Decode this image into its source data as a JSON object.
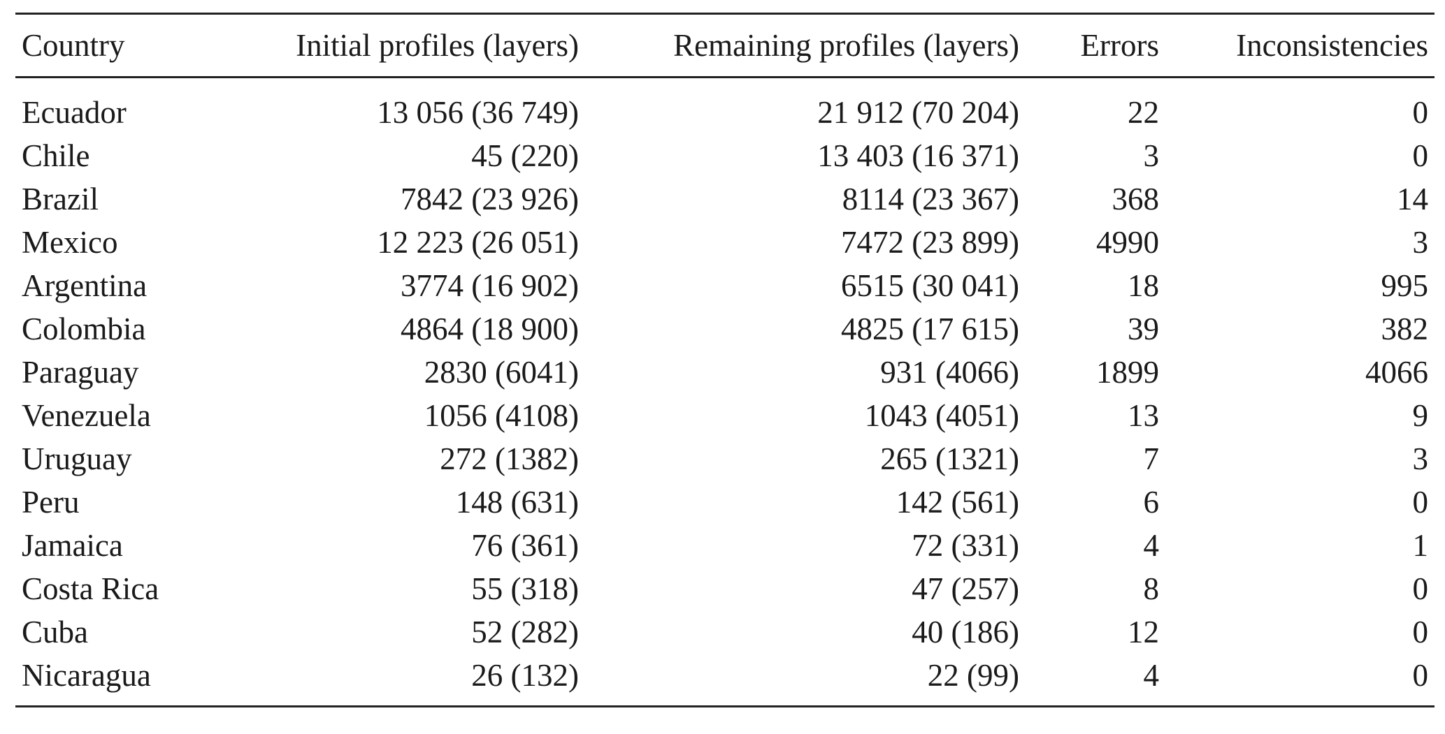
{
  "table": {
    "headers": {
      "country": "Country",
      "initial": "Initial profiles (layers)",
      "remaining": "Remaining profiles (layers)",
      "errors": "Errors",
      "inconsistencies": "Inconsistencies"
    },
    "rows": [
      {
        "country": "Ecuador",
        "initial": "13 056 (36 749)",
        "remaining": "21 912 (70 204)",
        "errors": "22",
        "inconsistencies": "0"
      },
      {
        "country": "Chile",
        "initial": "45 (220)",
        "remaining": "13 403 (16 371)",
        "errors": "3",
        "inconsistencies": "0"
      },
      {
        "country": "Brazil",
        "initial": "7842 (23 926)",
        "remaining": "8114 (23 367)",
        "errors": "368",
        "inconsistencies": "14"
      },
      {
        "country": "Mexico",
        "initial": "12 223 (26 051)",
        "remaining": "7472 (23 899)",
        "errors": "4990",
        "inconsistencies": "3"
      },
      {
        "country": "Argentina",
        "initial": "3774 (16 902)",
        "remaining": "6515 (30 041)",
        "errors": "18",
        "inconsistencies": "995"
      },
      {
        "country": "Colombia",
        "initial": "4864 (18 900)",
        "remaining": "4825 (17 615)",
        "errors": "39",
        "inconsistencies": "382"
      },
      {
        "country": "Paraguay",
        "initial": "2830 (6041)",
        "remaining": "931 (4066)",
        "errors": "1899",
        "inconsistencies": "4066"
      },
      {
        "country": "Venezuela",
        "initial": "1056 (4108)",
        "remaining": "1043 (4051)",
        "errors": "13",
        "inconsistencies": "9"
      },
      {
        "country": "Uruguay",
        "initial": "272 (1382)",
        "remaining": "265 (1321)",
        "errors": "7",
        "inconsistencies": "3"
      },
      {
        "country": "Peru",
        "initial": "148 (631)",
        "remaining": "142 (561)",
        "errors": "6",
        "inconsistencies": "0"
      },
      {
        "country": "Jamaica",
        "initial": "76 (361)",
        "remaining": "72 (331)",
        "errors": "4",
        "inconsistencies": "1"
      },
      {
        "country": "Costa Rica",
        "initial": "55 (318)",
        "remaining": "47 (257)",
        "errors": "8",
        "inconsistencies": "0"
      },
      {
        "country": "Cuba",
        "initial": "52 (282)",
        "remaining": "40 (186)",
        "errors": "12",
        "inconsistencies": "0"
      },
      {
        "country": "Nicaragua",
        "initial": "26 (132)",
        "remaining": "22 (99)",
        "errors": "4",
        "inconsistencies": "0"
      }
    ]
  }
}
